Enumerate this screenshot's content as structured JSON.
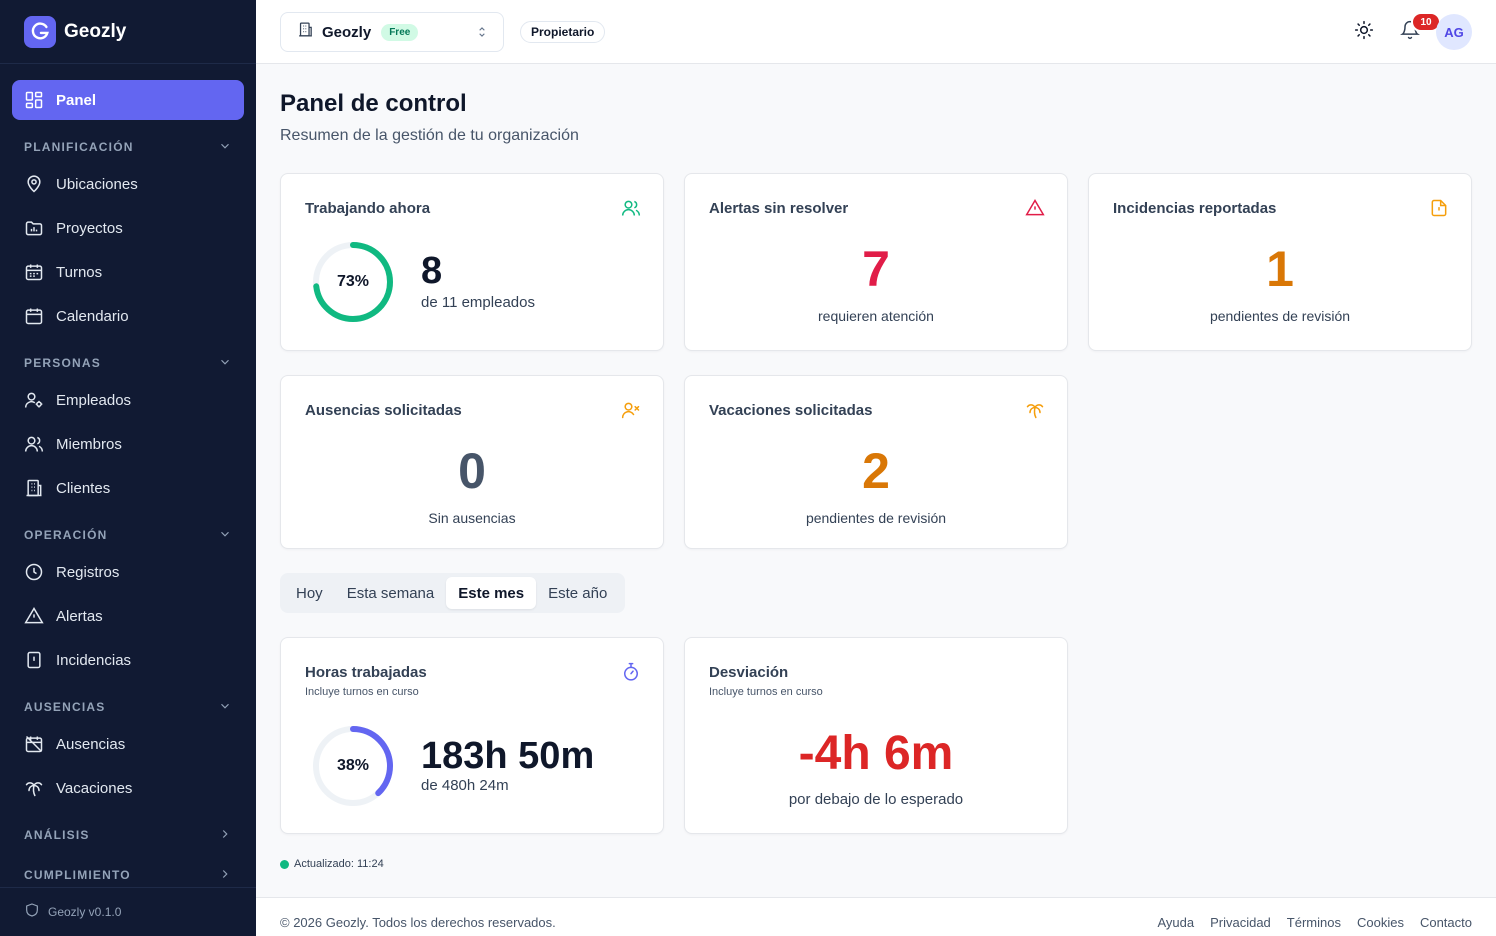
{
  "brand": {
    "name": "Geozly"
  },
  "sidebar": {
    "panel": "Panel",
    "sections": {
      "planificacion": "PLANIFICACIÓN",
      "personas": "PERSONAS",
      "operacion": "OPERACIÓN",
      "ausencias": "AUSENCIAS",
      "analisis": "ANÁLISIS",
      "cumplimiento": "CUMPLIMIENTO"
    },
    "items": {
      "ubicaciones": "Ubicaciones",
      "proyectos": "Proyectos",
      "turnos": "Turnos",
      "calendario": "Calendario",
      "empleados": "Empleados",
      "miembros": "Miembros",
      "clientes": "Clientes",
      "registros": "Registros",
      "alertas": "Alertas",
      "incidencias": "Incidencias",
      "ausencias": "Ausencias",
      "vacaciones": "Vacaciones"
    },
    "version": "Geozly v0.1.0"
  },
  "header": {
    "org_name": "Geozly",
    "plan": "Free",
    "role": "Propietario",
    "notifications": "10",
    "avatar_initials": "AG"
  },
  "page": {
    "title": "Panel de control",
    "subtitle": "Resumen de la gestión de tu organización"
  },
  "cards": {
    "working": {
      "title": "Trabajando ahora",
      "percent_label": "73%",
      "percent": 0.73,
      "value": "8",
      "caption": "de 11 empleados"
    },
    "alerts": {
      "title": "Alertas sin resolver",
      "value": "7",
      "caption": "requieren atención"
    },
    "incidents": {
      "title": "Incidencias reportadas",
      "value": "1",
      "caption": "pendientes de revisión"
    },
    "absences": {
      "title": "Ausencias solicitadas",
      "value": "0",
      "caption": "Sin ausencias"
    },
    "vacations": {
      "title": "Vacaciones solicitadas",
      "value": "2",
      "caption": "pendientes de revisión"
    },
    "hours": {
      "title": "Horas trabajadas",
      "subtitle": "Incluye turnos en curso",
      "percent_label": "38%",
      "percent": 0.38,
      "value": "183h 50m",
      "caption": "de 480h 24m"
    },
    "deviation": {
      "title": "Desviación",
      "subtitle": "Incluye turnos en curso",
      "value": "-4h 6m",
      "caption": "por debajo de lo esperado"
    }
  },
  "period_tabs": [
    "Hoy",
    "Esta semana",
    "Este mes",
    "Este año"
  ],
  "updated": "Actualizado: 11:24",
  "footer": {
    "copyright": "© 2026 Geozly. Todos los derechos reservados.",
    "links": [
      "Ayuda",
      "Privacidad",
      "Términos",
      "Cookies",
      "Contacto"
    ]
  },
  "colors": {
    "sidebar_bg": "#111a33",
    "accent": "#6366f1",
    "success": "#10b981",
    "danger": "#e11d48",
    "warning": "#d97706",
    "deviation": "#dc2626"
  }
}
